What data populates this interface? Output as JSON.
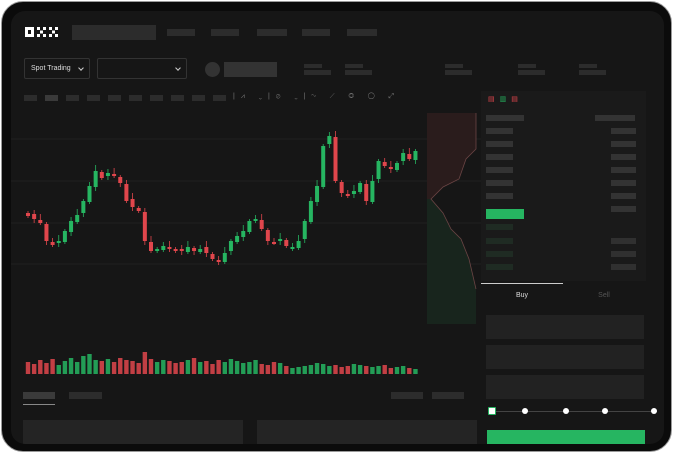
{
  "header": {
    "logo": "OKX"
  },
  "market": {
    "mode_label": "Spot Trading"
  },
  "trade": {
    "tabs": [
      {
        "label": "Buy",
        "active": true
      },
      {
        "label": "Sell",
        "active": false
      }
    ],
    "slider_percent": 0,
    "slider_stops": 5
  },
  "colors": {
    "up": "#26b561",
    "down": "#e0464c",
    "background": "#161616",
    "accent": "#26b561"
  },
  "chart_data": {
    "type": "candlestick",
    "closes": [
      65,
      62,
      58,
      40,
      36,
      40,
      50,
      60,
      66,
      80,
      95,
      110,
      103,
      108,
      105,
      98,
      80,
      74,
      70,
      40,
      30,
      32,
      35,
      33,
      30,
      30,
      34,
      30,
      32,
      28,
      22,
      20,
      28,
      40,
      45,
      50,
      60,
      62,
      52,
      40,
      38,
      42,
      35,
      34,
      40,
      60,
      80,
      95,
      135,
      145,
      100,
      88,
      85,
      90,
      98,
      80,
      100,
      120,
      115,
      112,
      118,
      128,
      122,
      130
    ],
    "volumes": [
      12,
      10,
      14,
      11,
      15,
      9,
      13,
      16,
      12,
      18,
      20,
      14,
      13,
      15,
      12,
      16,
      14,
      13,
      11,
      22,
      15,
      12,
      14,
      13,
      11,
      12,
      14,
      16,
      12,
      13,
      10,
      14,
      12,
      15,
      13,
      11,
      12,
      14,
      10,
      9,
      12,
      11,
      8,
      6,
      7,
      8,
      9,
      11,
      10,
      8,
      9,
      7,
      8,
      10,
      9,
      8,
      7,
      8,
      9,
      6,
      7,
      8,
      6,
      5
    ]
  }
}
